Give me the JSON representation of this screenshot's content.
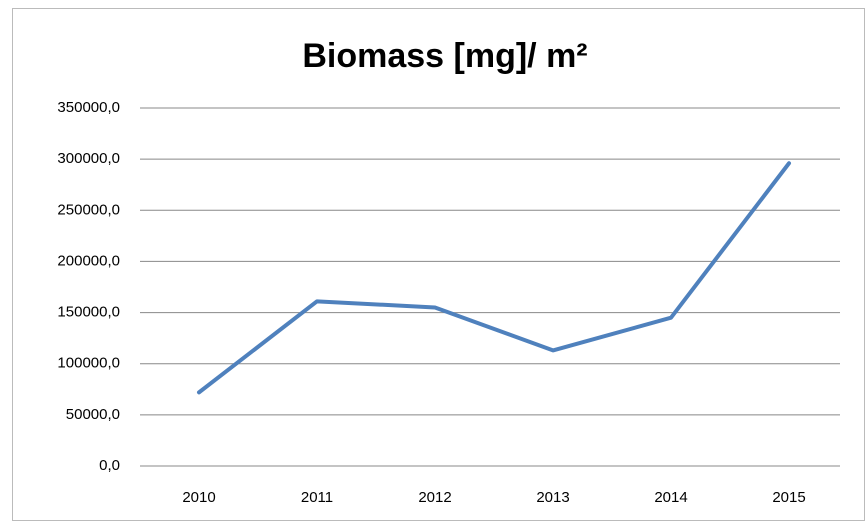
{
  "chart_data": {
    "type": "line",
    "title": "Biomass [mg]/ m²",
    "categories": [
      "2010",
      "2011",
      "2012",
      "2013",
      "2014",
      "2015"
    ],
    "series": [
      {
        "name": "Biomass",
        "color": "#4f81bd",
        "values": [
          72000,
          161000,
          155000,
          113000,
          145000,
          296000
        ]
      }
    ],
    "ylim": [
      0,
      350000
    ],
    "yticks": [
      {
        "value": 0,
        "label": "0,0"
      },
      {
        "value": 50000,
        "label": "50000,0"
      },
      {
        "value": 100000,
        "label": "100000,0"
      },
      {
        "value": 150000,
        "label": "150000,0"
      },
      {
        "value": 200000,
        "label": "200000,0"
      },
      {
        "value": 250000,
        "label": "250000,0"
      },
      {
        "value": 300000,
        "label": "300000,0"
      },
      {
        "value": 350000,
        "label": "350000,0"
      }
    ],
    "grid": true
  }
}
